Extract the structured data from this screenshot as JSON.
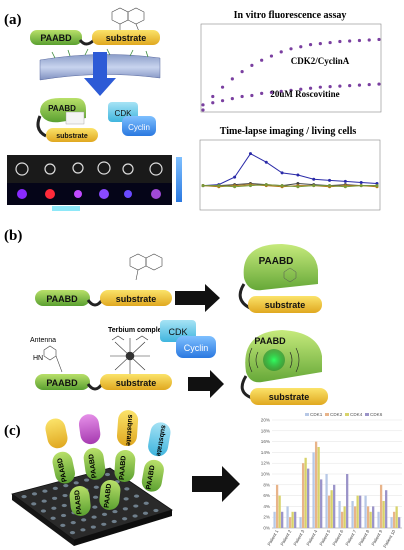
{
  "panels": {
    "a": {
      "label": "(a)"
    },
    "b": {
      "label": "(b)"
    },
    "c": {
      "label": "(c)"
    }
  },
  "labels": {
    "paabd": "PAABD",
    "substrate": "substrate",
    "cdk": "CDK",
    "cyclin": "Cyclin",
    "antenna": "Antenna",
    "terbium": "Terbium complex",
    "hn": "HN"
  },
  "chart_data": [
    {
      "type": "scatter",
      "title": "In vitro fluorescence assay",
      "series": [
        {
          "name": "CDK2/CyclinA",
          "color": "#7a3fa0",
          "x": [
            0,
            100,
            200,
            300,
            400,
            500,
            600,
            700,
            800,
            900,
            1000,
            1100,
            1200,
            1300,
            1400,
            1500,
            1600,
            1700,
            1800
          ],
          "values": [
            0.0,
            0.13,
            0.22,
            0.3,
            0.37,
            0.43,
            0.48,
            0.52,
            0.56,
            0.59,
            0.61,
            0.63,
            0.64,
            0.65,
            0.66,
            0.665,
            0.67,
            0.675,
            0.68
          ]
        },
        {
          "name": "20uM Roscovitine",
          "color": "#7a3fa0",
          "x": [
            0,
            100,
            200,
            300,
            400,
            500,
            600,
            700,
            800,
            900,
            1000,
            1100,
            1200,
            1300,
            1400,
            1500,
            1600,
            1700,
            1800
          ],
          "values": [
            0.05,
            0.07,
            0.09,
            0.11,
            0.13,
            0.14,
            0.16,
            0.17,
            0.18,
            0.19,
            0.2,
            0.21,
            0.22,
            0.225,
            0.23,
            0.235,
            0.24,
            0.245,
            0.25
          ]
        }
      ],
      "xlim": [
        0,
        1800
      ],
      "ylim": [
        0,
        0.8
      ],
      "xlabel": "",
      "ylabel": ""
    },
    {
      "type": "line",
      "title": "Time-lapse imaging / living cells",
      "x": [
        0,
        50,
        100,
        150,
        200,
        250,
        300,
        350,
        400,
        450,
        500,
        550
      ],
      "series": [
        {
          "name": "",
          "color": "#2a2aa8",
          "values": [
            1.0,
            1.05,
            1.4,
            2.5,
            2.1,
            1.6,
            1.5,
            1.3,
            1.25,
            1.2,
            1.15,
            1.1
          ]
        },
        {
          "name": "",
          "color": "#444444",
          "values": [
            1.0,
            1.0,
            1.05,
            1.1,
            1.05,
            1.0,
            1.1,
            1.05,
            1.0,
            1.05,
            1.0,
            1.0
          ]
        },
        {
          "name": "",
          "color": "#b07a1a",
          "values": [
            1.0,
            0.95,
            1.0,
            1.05,
            1.0,
            0.95,
            1.0,
            1.0,
            0.95,
            1.0,
            1.0,
            0.95
          ]
        },
        {
          "name": "",
          "color": "#7a9a3a",
          "values": [
            1.0,
            1.0,
            0.95,
            1.0,
            1.05,
            1.0,
            0.95,
            1.0,
            1.0,
            0.95,
            1.0,
            1.0
          ]
        }
      ],
      "xlim": [
        0,
        550
      ],
      "ylim": [
        0,
        3
      ],
      "xlabel": "",
      "ylabel": ""
    },
    {
      "type": "bar",
      "categories": [
        "Patient 1",
        "Patient 2",
        "Patient 3",
        "Patient 4",
        "Patient 5",
        "Patient 6",
        "Patient 7",
        "Patient 8",
        "Patient 9",
        "Patient 10"
      ],
      "series": [
        {
          "name": "CDK1",
          "color": "#b7c8e6",
          "values": [
            0.03,
            0.04,
            0.02,
            0.14,
            0.1,
            0.05,
            0.05,
            0.06,
            0.03,
            0.02
          ]
        },
        {
          "name": "CDK2",
          "color": "#e8b48a",
          "values": [
            0.08,
            0.02,
            0.12,
            0.16,
            0.06,
            0.03,
            0.04,
            0.04,
            0.08,
            0.03
          ]
        },
        {
          "name": "CDK4",
          "color": "#d8d36a",
          "values": [
            0.06,
            0.03,
            0.13,
            0.15,
            0.07,
            0.04,
            0.06,
            0.03,
            0.05,
            0.04
          ]
        },
        {
          "name": "CDK6",
          "color": "#9a93c8",
          "values": [
            0.03,
            0.03,
            0.11,
            0.09,
            0.08,
            0.1,
            0.06,
            0.04,
            0.07,
            0.02
          ]
        }
      ],
      "ylim": [
        0,
        0.2
      ],
      "yticks": [
        "0%",
        "2%",
        "4%",
        "6%",
        "8%",
        "10%",
        "12%",
        "14%",
        "16%",
        "18%",
        "20%"
      ],
      "legend": "top",
      "xlabel": "",
      "ylabel": ""
    }
  ]
}
